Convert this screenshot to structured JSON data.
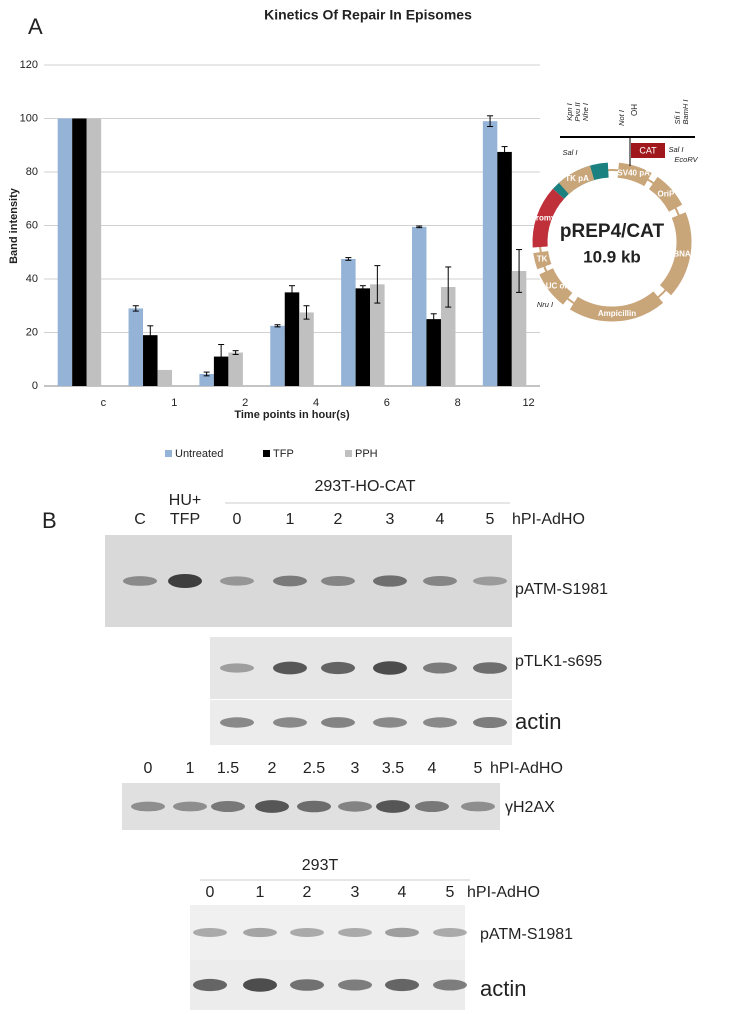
{
  "panel_a": {
    "label": "A"
  },
  "chart_data": {
    "type": "bar",
    "title": "Kinetics Of Repair In Episomes",
    "x_label": "Time points in hour(s)",
    "y_label": "Band intensity",
    "categories": [
      "c",
      "1",
      "2",
      "4",
      "6",
      "8",
      "12"
    ],
    "series": [
      {
        "name": "Untreated",
        "color": "#95b3d7",
        "values": [
          100,
          29,
          4.5,
          22.5,
          47.5,
          59.5,
          99
        ],
        "errors": [
          null,
          1,
          0.7,
          0.4,
          0.5,
          0.3,
          2
        ]
      },
      {
        "name": "TFP",
        "color": "#000000",
        "values": [
          100,
          19,
          11,
          35,
          36.5,
          25,
          87.5
        ],
        "errors": [
          null,
          3.5,
          4.5,
          2.5,
          1,
          2,
          2
        ]
      },
      {
        "name": "PPH",
        "color": "#c0c0c0",
        "values": [
          100,
          6,
          12.5,
          27.5,
          38,
          37,
          43
        ],
        "errors": [
          null,
          null,
          0.7,
          2.5,
          7,
          7.5,
          8
        ]
      }
    ],
    "ylim": [
      0,
      120
    ],
    "yticks": [
      0,
      20,
      40,
      60,
      80,
      100,
      120
    ],
    "grid": true,
    "legend": "bottom"
  },
  "plasmid": {
    "name": "pREP4/CAT",
    "size": "10.9 kb",
    "insert": "CAT",
    "ho_site": "HO",
    "sites": [
      "Kpn I",
      "Pvu II",
      "Nhe I",
      "Not I",
      "Sfi I",
      "BamH I",
      "Sal I",
      "Sal I",
      "EcoRV",
      "Nru I"
    ],
    "features": [
      "PRSV",
      "SV40 pA",
      "OriP",
      "EBNA-1",
      "Ampicillin",
      "pUC ori",
      "TK",
      "Hygromycin",
      "TK pA"
    ]
  },
  "panel_b": {
    "label": "B",
    "blot1": {
      "title": "293T-HO-CAT",
      "lanes": [
        "C",
        "HU+ TFP",
        "0",
        "1",
        "2",
        "3",
        "4",
        "5"
      ],
      "lane_unit": "hPI-AdHO",
      "rows": [
        "pATM-S1981",
        "pTLK1-s695",
        "actin"
      ]
    },
    "blot2": {
      "lanes": [
        "0",
        "1",
        "1.5",
        "2",
        "2.5",
        "3",
        "3.5",
        "4",
        "5"
      ],
      "lane_unit": "hPI-AdHO",
      "rows": [
        "γH2AX"
      ]
    },
    "blot3": {
      "title": "293T",
      "lanes": [
        "0",
        "1",
        "2",
        "3",
        "4",
        "5"
      ],
      "lane_unit": "hPI-AdHO",
      "rows": [
        "pATM-S1981",
        "actin"
      ]
    }
  }
}
